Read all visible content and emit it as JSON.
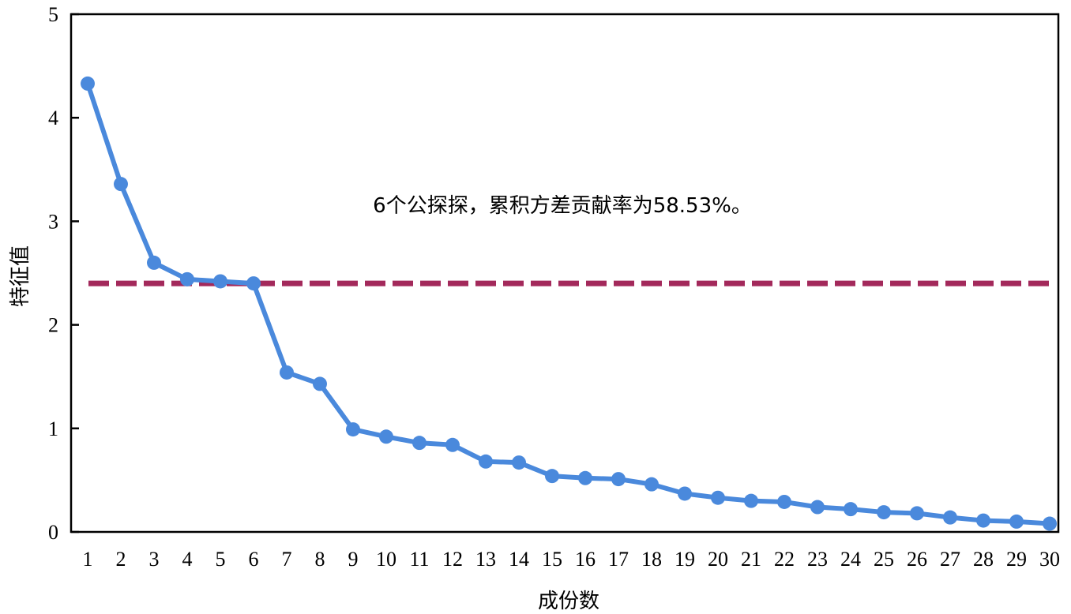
{
  "chart_data": {
    "type": "line",
    "title": "",
    "xlabel": "成份数",
    "ylabel": "特征值",
    "annotation": "6个公探探，累积方差贡献率为58.53%。",
    "x": [
      1,
      2,
      3,
      4,
      5,
      6,
      7,
      8,
      9,
      10,
      11,
      12,
      13,
      14,
      15,
      16,
      17,
      18,
      19,
      20,
      21,
      22,
      23,
      24,
      25,
      26,
      27,
      28,
      29,
      30
    ],
    "xticks": [
      "1",
      "2",
      "3",
      "4",
      "5",
      "6",
      "7",
      "8",
      "9",
      "10",
      "11",
      "12",
      "13",
      "14",
      "15",
      "16",
      "17",
      "18",
      "19",
      "20",
      "21",
      "22",
      "23",
      "24",
      "25",
      "26",
      "27",
      "28",
      "29",
      "30"
    ],
    "ylim": [
      0,
      5
    ],
    "yticks": [
      "0",
      "1",
      "2",
      "3",
      "4",
      "5"
    ],
    "grid": false,
    "series": [
      {
        "values": [
          4.33,
          3.36,
          2.6,
          2.44,
          2.42,
          2.4,
          1.54,
          1.43,
          0.99,
          0.92,
          0.86,
          0.84,
          0.68,
          0.67,
          0.54,
          0.52,
          0.51,
          0.46,
          0.37,
          0.33,
          0.3,
          0.29,
          0.24,
          0.22,
          0.19,
          0.18,
          0.14,
          0.11,
          0.1,
          0.08
        ],
        "color": "#4a89dc"
      }
    ],
    "reference_line": {
      "value": 2.4,
      "color": "#a3295b",
      "style": "dashed"
    }
  }
}
